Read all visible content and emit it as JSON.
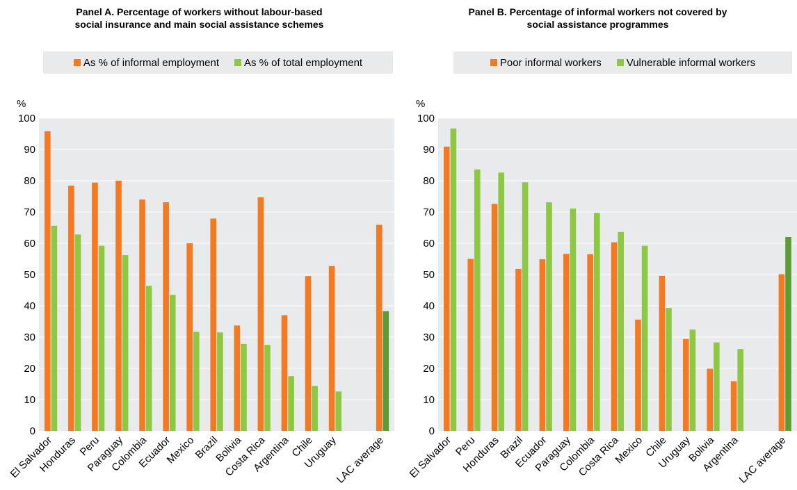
{
  "colors": {
    "informal": "#f47920",
    "total": "#8cc841",
    "avg_green": "#5c9c35",
    "plot_bg": "#e9eaec",
    "grid": "#ffffff"
  },
  "panels": [
    {
      "title_line1": "Panel A. Percentage of workers without labour-based",
      "title_line2": "social insurance and main social assistance schemes",
      "legend": [
        "As % of informal employment",
        "As % of total employment"
      ]
    },
    {
      "title_line1": "Panel B. Percentage of informal workers not covered by",
      "title_line2": "social assistance programmes",
      "legend": [
        "Poor informal workers",
        "Vulnerable informal workers"
      ]
    }
  ],
  "chart_data": [
    {
      "type": "bar",
      "title": "Panel A. Percentage of workers without labour-based social insurance and main social assistance schemes",
      "ylabel": "%",
      "ylim": [
        0,
        100
      ],
      "yticks": [
        0,
        10,
        20,
        30,
        40,
        50,
        60,
        70,
        80,
        90,
        100
      ],
      "grid": true,
      "legend_position": "top",
      "categories": [
        "El Salvador",
        "Honduras",
        "Peru",
        "Paraguay",
        "Colombia",
        "Ecuador",
        "Mexico",
        "Brazil",
        "Bolivia",
        "Costa Rica",
        "Argentina",
        "Chile",
        "Uruguay",
        "",
        "LAC average"
      ],
      "series": [
        {
          "name": "As % of informal employment",
          "values": [
            95.8,
            78.4,
            79.4,
            80.0,
            74.0,
            73.1,
            60.0,
            67.9,
            33.7,
            74.7,
            37.0,
            49.5,
            52.7,
            null,
            65.9
          ]
        },
        {
          "name": "As % of total employment",
          "values": [
            65.6,
            62.8,
            59.2,
            56.2,
            46.4,
            43.5,
            31.7,
            31.5,
            27.8,
            27.5,
            17.5,
            14.4,
            12.6,
            null,
            38.3
          ]
        }
      ]
    },
    {
      "type": "bar",
      "title": "Panel B. Percentage of informal workers not covered by social assistance programmes",
      "ylabel": "%",
      "ylim": [
        0,
        100
      ],
      "yticks": [
        0,
        10,
        20,
        30,
        40,
        50,
        60,
        70,
        80,
        90,
        100
      ],
      "grid": true,
      "legend_position": "top",
      "categories": [
        "El Salvador",
        "Peru",
        "Honduras",
        "Brazil",
        "Ecuador",
        "Paraguay",
        "Colombia",
        "Costa Rica",
        "Mexico",
        "Chile",
        "Uruguay",
        "Bolivia",
        "Argentina",
        "",
        "LAC average"
      ],
      "series": [
        {
          "name": "Poor informal workers",
          "values": [
            90.9,
            55.0,
            72.6,
            51.8,
            54.9,
            56.6,
            56.5,
            60.3,
            35.6,
            49.6,
            29.4,
            19.9,
            15.9,
            null,
            50.1
          ]
        },
        {
          "name": "Vulnerable informal workers",
          "values": [
            96.7,
            83.6,
            82.6,
            79.5,
            73.1,
            71.1,
            69.7,
            63.6,
            59.2,
            39.3,
            32.4,
            28.3,
            26.2,
            null,
            62.0
          ]
        }
      ]
    }
  ]
}
